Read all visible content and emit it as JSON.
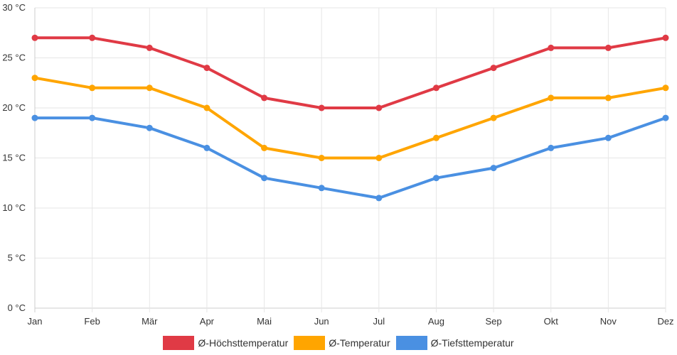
{
  "chart_data": {
    "type": "line",
    "categories": [
      "Jan",
      "Feb",
      "Mär",
      "Apr",
      "Mai",
      "Jun",
      "Jul",
      "Aug",
      "Sep",
      "Okt",
      "Nov",
      "Dez"
    ],
    "series": [
      {
        "name": "Ø-Höchsttemperatur",
        "color": "#e03a45",
        "values": [
          27,
          27,
          26,
          24,
          21,
          20,
          20,
          22,
          24,
          26,
          26,
          27
        ]
      },
      {
        "name": "Ø-Temperatur",
        "color": "#ffa500",
        "values": [
          23,
          22,
          22,
          20,
          16,
          15,
          15,
          17,
          19,
          21,
          21,
          22
        ]
      },
      {
        "name": "Ø-Tiefsttemperatur",
        "color": "#4a90e2",
        "values": [
          19,
          19,
          18,
          16,
          13,
          12,
          11,
          13,
          14,
          16,
          17,
          19
        ]
      }
    ],
    "yticks": [
      "0 °C",
      "5 °C",
      "10 °C",
      "15 °C",
      "20 °C",
      "25 °C",
      "30 °C"
    ],
    "ytick_values": [
      0,
      5,
      10,
      15,
      20,
      25,
      30
    ],
    "ylim": [
      0,
      30
    ],
    "unit": "°C",
    "grid": true,
    "legend_position": "bottom"
  }
}
